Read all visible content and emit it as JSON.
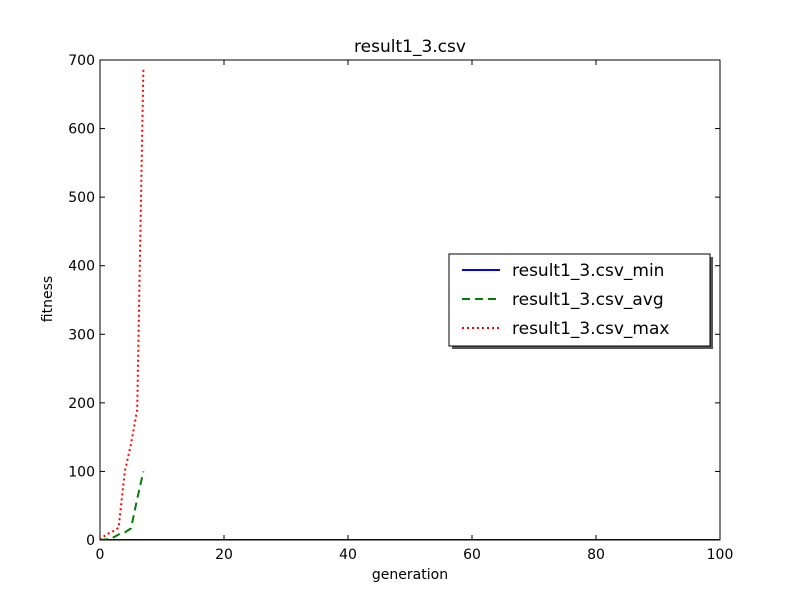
{
  "chart_data": {
    "type": "line",
    "title": "result1_3.csv",
    "xlabel": "generation",
    "ylabel": "fitness",
    "xlim": [
      0,
      100
    ],
    "ylim": [
      0,
      700
    ],
    "xticks": [
      0,
      20,
      40,
      60,
      80,
      100
    ],
    "yticks": [
      0,
      100,
      200,
      300,
      400,
      500,
      600,
      700
    ],
    "grid": false,
    "legend_position": "center-right",
    "series": [
      {
        "name": "result1_3.csv_min",
        "color": "#0000ff",
        "style": "solid",
        "x": [
          0,
          100
        ],
        "y": [
          0,
          0
        ]
      },
      {
        "name": "result1_3.csv_avg",
        "color": "#008000",
        "style": "dashed",
        "x": [
          0,
          1,
          2,
          3,
          4,
          5,
          6,
          7
        ],
        "y": [
          0,
          1,
          3,
          8,
          11,
          17,
          60,
          100
        ]
      },
      {
        "name": "result1_3.csv_max",
        "color": "#ff0000",
        "style": "dotted",
        "x": [
          0,
          1,
          2,
          3,
          4,
          5,
          6,
          7
        ],
        "y": [
          0,
          8,
          12,
          18,
          100,
          140,
          190,
          690
        ]
      }
    ]
  }
}
